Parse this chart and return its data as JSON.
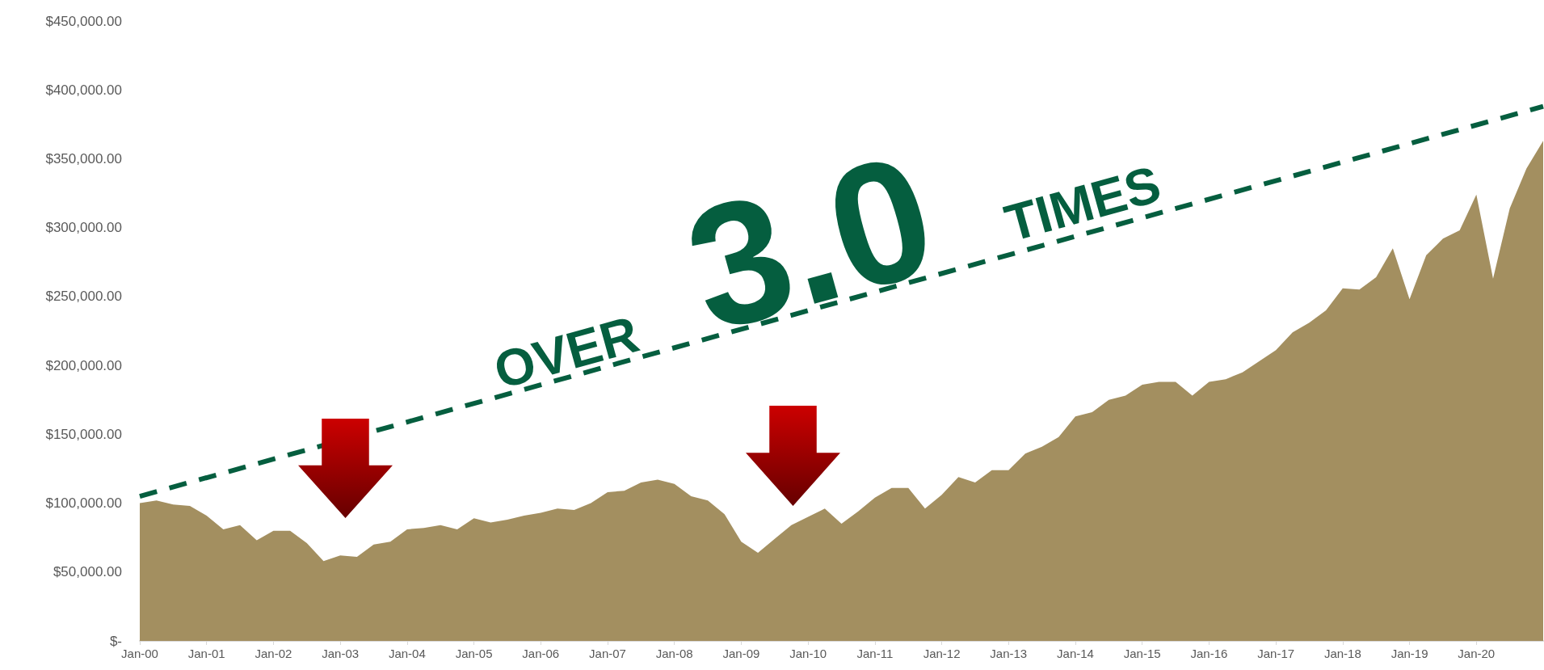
{
  "chart_data": {
    "type": "area",
    "categories": [
      "Jan-00",
      null,
      null,
      null,
      "Jan-01",
      null,
      null,
      null,
      "Jan-02",
      null,
      null,
      null,
      "Jan-03",
      null,
      null,
      null,
      "Jan-04",
      null,
      null,
      null,
      "Jan-05",
      null,
      null,
      null,
      "Jan-06",
      null,
      null,
      null,
      "Jan-07",
      null,
      null,
      null,
      "Jan-08",
      null,
      null,
      null,
      "Jan-09",
      null,
      null,
      null,
      "Jan-10",
      null,
      null,
      null,
      "Jan-11",
      null,
      null,
      null,
      "Jan-12",
      null,
      null,
      null,
      "Jan-13",
      null,
      null,
      null,
      "Jan-14",
      null,
      null,
      null,
      "Jan-15",
      null,
      null,
      null,
      "Jan-16",
      null,
      null,
      null,
      "Jan-17",
      null,
      null,
      null,
      "Jan-18",
      null,
      null,
      null,
      "Jan-19",
      null,
      null,
      null,
      "Jan-20",
      null,
      null,
      null,
      null
    ],
    "series": [
      {
        "color": "#a38f60",
        "values": [
          100000,
          102000,
          99000,
          98000,
          91000,
          81000,
          84000,
          73000,
          80000,
          80000,
          71000,
          58000,
          62000,
          61000,
          70000,
          72000,
          81000,
          82000,
          84000,
          81000,
          89000,
          86000,
          88000,
          91000,
          93000,
          96000,
          95000,
          100000,
          108000,
          109000,
          115000,
          117000,
          114000,
          105000,
          102000,
          92000,
          72000,
          64000,
          74000,
          84000,
          90000,
          96000,
          85000,
          94000,
          104000,
          111000,
          111000,
          96000,
          106000,
          119000,
          115000,
          124000,
          124000,
          136000,
          141000,
          148000,
          163000,
          166000,
          175000,
          178000,
          186000,
          188000,
          188000,
          178000,
          188000,
          190000,
          195000,
          203000,
          211000,
          224000,
          231000,
          240000,
          256000,
          255000,
          264000,
          285000,
          248000,
          280000,
          292000,
          298000,
          324000,
          263000,
          314000,
          343000,
          363000
        ]
      },
      {
        "type": "line",
        "line_style": "dashed",
        "color": "#055e3f",
        "values": [
          105000,
          null,
          null,
          null,
          null,
          null,
          null,
          null,
          null,
          null,
          null,
          null,
          null,
          null,
          null,
          null,
          null,
          null,
          null,
          null,
          null,
          null,
          null,
          null,
          null,
          null,
          null,
          null,
          null,
          null,
          null,
          null,
          null,
          null,
          null,
          null,
          null,
          null,
          null,
          null,
          null,
          null,
          null,
          null,
          null,
          null,
          null,
          null,
          null,
          null,
          null,
          null,
          null,
          null,
          null,
          null,
          null,
          null,
          null,
          null,
          null,
          null,
          null,
          null,
          null,
          null,
          null,
          null,
          null,
          null,
          null,
          null,
          null,
          null,
          null,
          null,
          null,
          null,
          null,
          null,
          null,
          null,
          null,
          null,
          388000
        ]
      }
    ],
    "ylim": [
      0,
      450000
    ],
    "yticks": [
      {
        "value": 0,
        "label": "$-"
      },
      {
        "value": 50000,
        "label": "$50,000.00"
      },
      {
        "value": 100000,
        "label": "$100,000.00"
      },
      {
        "value": 150000,
        "label": "$150,000.00"
      },
      {
        "value": 200000,
        "label": "$200,000.00"
      },
      {
        "value": 250000,
        "label": "$250,000.00"
      },
      {
        "value": 300000,
        "label": "$300,000.00"
      },
      {
        "value": 350000,
        "label": "$350,000.00"
      },
      {
        "value": 400000,
        "label": "$400,000.00"
      },
      {
        "value": 450000,
        "label": "$450,000.00"
      }
    ],
    "annotations": [
      "OVER",
      "3.0",
      "TIMES"
    ],
    "grid": false
  }
}
